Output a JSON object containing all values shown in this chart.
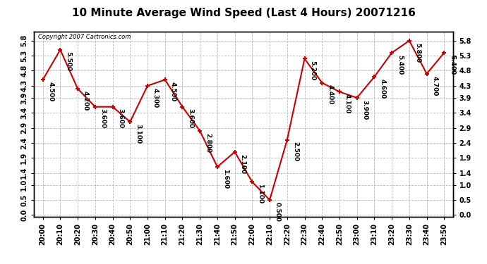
{
  "title": "10 Minute Average Wind Speed (Last 4 Hours) 20071216",
  "copyright": "Copyright 2007 Cartronics.com",
  "times": [
    "20:00",
    "20:10",
    "20:20",
    "20:30",
    "20:40",
    "20:50",
    "21:00",
    "21:10",
    "21:20",
    "21:30",
    "21:40",
    "21:50",
    "22:00",
    "22:10",
    "22:20",
    "22:30",
    "22:40",
    "22:50",
    "23:00",
    "23:10",
    "23:20",
    "23:30",
    "23:40",
    "23:50"
  ],
  "values": [
    4.5,
    5.5,
    4.2,
    3.6,
    3.6,
    3.1,
    4.3,
    4.5,
    3.6,
    2.8,
    1.6,
    2.1,
    1.1,
    0.5,
    2.5,
    5.2,
    4.4,
    4.1,
    3.9,
    4.6,
    5.4,
    5.8,
    4.7,
    5.4
  ],
  "ylim_min": -0.05,
  "ylim_max": 6.1,
  "yticks": [
    0.0,
    0.5,
    1.0,
    1.4,
    1.9,
    2.4,
    2.9,
    3.4,
    3.9,
    4.3,
    4.8,
    5.3,
    5.8
  ],
  "line_color": "#cc0000",
  "marker_color": "#cc0000",
  "bg_color": "#ffffff",
  "grid_color": "#bbbbbb",
  "title_fontsize": 11,
  "tick_fontsize": 7,
  "annotation_fontsize": 6.5,
  "copyright_fontsize": 6
}
